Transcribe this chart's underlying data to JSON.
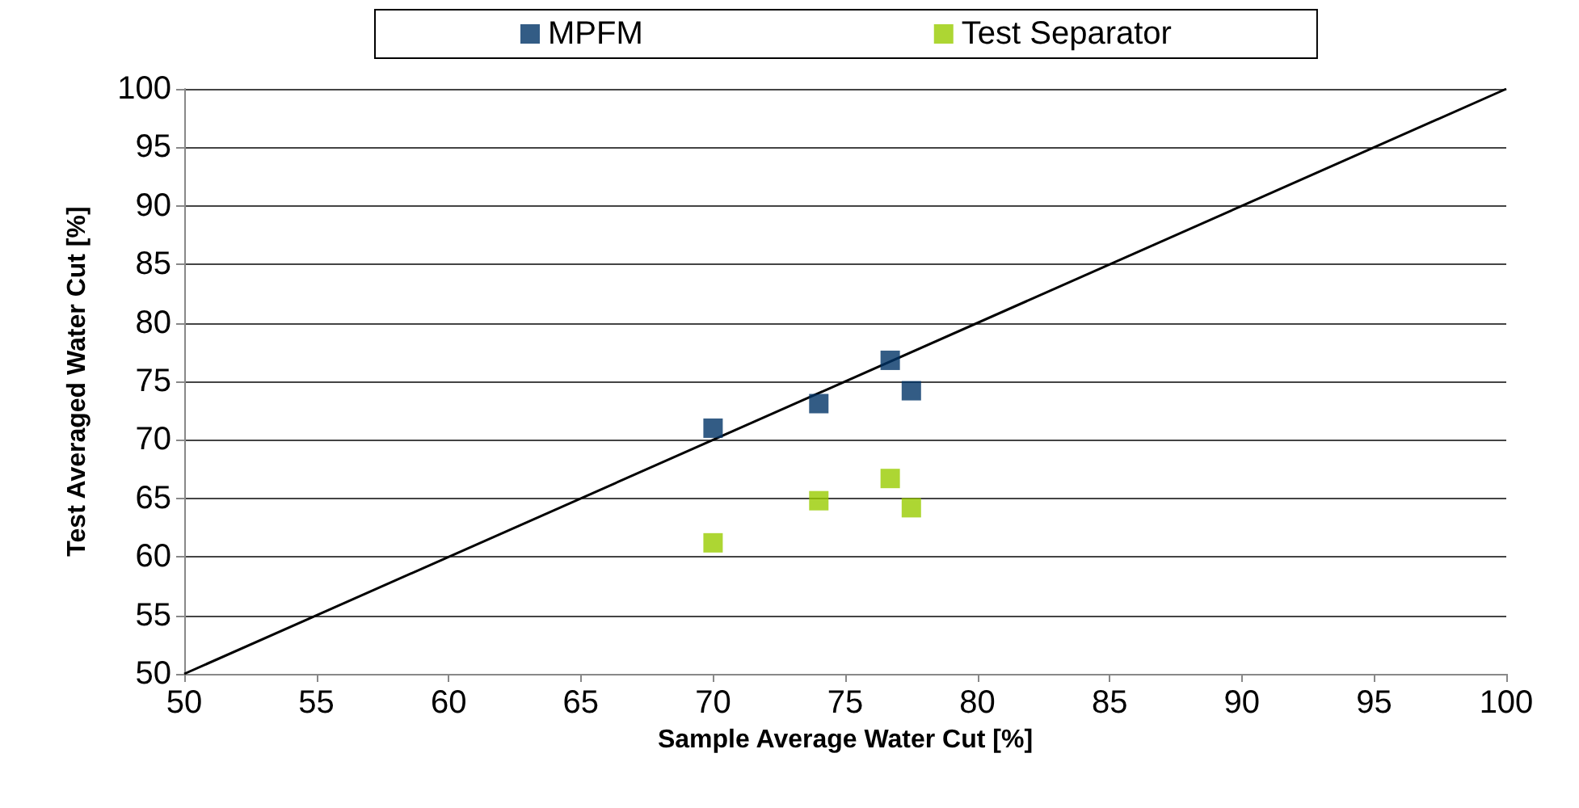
{
  "chart_data": {
    "type": "scatter",
    "xlabel": "Sample Average Water Cut [%]",
    "ylabel": "Test Averaged Water Cut [%]",
    "xlim": [
      50,
      100
    ],
    "xticks": [
      50,
      55,
      60,
      65,
      70,
      75,
      80,
      85,
      90,
      95,
      100
    ],
    "ylim": [
      50,
      100
    ],
    "yticks": [
      50,
      55,
      60,
      65,
      70,
      75,
      80,
      85,
      90,
      95,
      100
    ],
    "grid": "y",
    "legend": "top",
    "marker": "square",
    "series": [
      {
        "name": "MPFM",
        "color": "#003366",
        "x": [
          70,
          74,
          76.7,
          77.5
        ],
        "values": [
          71,
          73.1,
          76.8,
          74.2
        ]
      },
      {
        "name": "Test Separator",
        "color": "#99cc00",
        "x": [
          70,
          74,
          76.7,
          77.5
        ],
        "values": [
          61.2,
          64.8,
          66.7,
          64.2
        ]
      },
      {
        "type": "line",
        "color": "#000000",
        "marker": "none",
        "x": [
          50,
          100
        ],
        "values": [
          50,
          100
        ]
      }
    ]
  }
}
